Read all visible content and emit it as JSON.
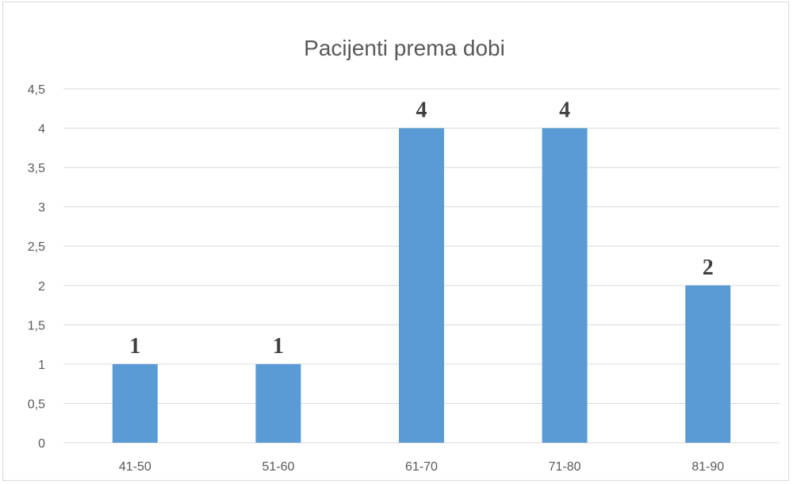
{
  "chart_data": {
    "type": "bar",
    "title": "Pacijenti prema dobi",
    "categories": [
      "41-50",
      "51-60",
      "61-70",
      "71-80",
      "81-90"
    ],
    "values": [
      1,
      1,
      4,
      4,
      2
    ],
    "data_labels": [
      "1",
      "1",
      "4",
      "4",
      "2"
    ],
    "y_ticks": [
      "0",
      "0,5",
      "1",
      "1,5",
      "2",
      "2,5",
      "3",
      "3,5",
      "4",
      "4,5"
    ],
    "ylim": [
      0,
      4.5
    ],
    "grid": true,
    "legend": "none",
    "bar_color": "#5b9bd5"
  }
}
